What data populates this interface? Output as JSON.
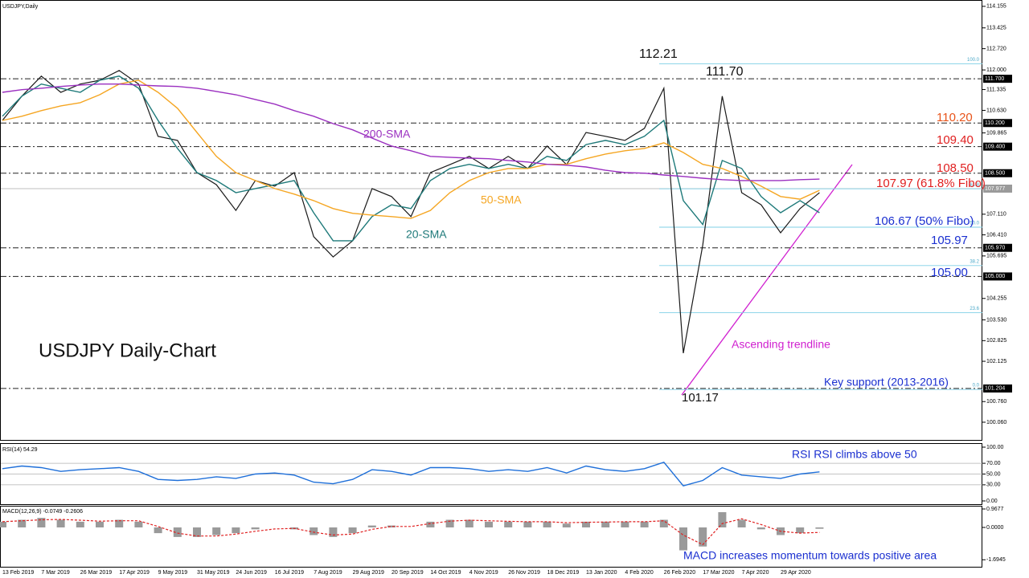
{
  "chart_data": [
    {
      "type": "line",
      "title": "USDJPY Daily-Chart",
      "symbol": "USDJPY,Daily",
      "categories": [
        "13 Feb 2019",
        null,
        "7 Mar 2019",
        null,
        "26 Mar 2019",
        null,
        "17 Apr 2019",
        null,
        "9 May 2019",
        null,
        "31 May 2019",
        null,
        "24 Jun 2019",
        null,
        "16 Jul 2019",
        null,
        "7 Aug 2019",
        null,
        "29 Aug 2019",
        null,
        "20 Sep 2019",
        null,
        "14 Oct 2019",
        null,
        "4 Nov 2019",
        null,
        "26 Nov 2019",
        null,
        "18 Dec 2019",
        null,
        "13 Jan 2020",
        null,
        "4 Feb 2020",
        null,
        "26 Feb 2020",
        null,
        "17 Mar 2020",
        null,
        "7 Apr 2020",
        null,
        "29 Apr 2020",
        null,
        null
      ],
      "series": [
        {
          "color": "#1a1a1a",
          "values": [
            110.29,
            111.11,
            111.79,
            111.24,
            111.52,
            111.65,
            111.98,
            111.52,
            109.75,
            109.61,
            108.52,
            108.11,
            107.24,
            108.25,
            108.06,
            108.52,
            106.35,
            105.66,
            106.21,
            107.98,
            107.71,
            107.03,
            108.52,
            108.79,
            109.07,
            108.66,
            109.07,
            108.66,
            109.42,
            108.79,
            109.88,
            109.75,
            109.61,
            110.02,
            111.38,
            102.4,
            106.07,
            111.11,
            107.84,
            107.43,
            106.48,
            107.3,
            107.84
          ]
        },
        {
          "name": "20-SMA",
          "color": "#1f7a7a",
          "values": [
            110.43,
            111.11,
            111.52,
            111.38,
            111.24,
            111.65,
            111.79,
            111.38,
            110.29,
            109.34,
            108.52,
            108.25,
            107.84,
            107.98,
            108.11,
            108.25,
            107.16,
            106.21,
            106.21,
            107.03,
            107.43,
            107.3,
            108.25,
            108.66,
            108.8,
            108.66,
            108.8,
            108.66,
            109.07,
            108.93,
            109.47,
            109.61,
            109.47,
            109.75,
            110.29,
            107.57,
            106.76,
            108.93,
            108.66,
            107.71,
            107.16,
            107.57,
            107.16
          ]
        },
        {
          "name": "50-SMA",
          "color": "#f5a623",
          "values": [
            110.29,
            110.43,
            110.62,
            110.78,
            110.89,
            111.16,
            111.52,
            111.65,
            111.24,
            110.7,
            109.88,
            109.07,
            108.52,
            108.25,
            107.98,
            107.79,
            107.57,
            107.3,
            107.14,
            107.08,
            107.03,
            106.97,
            107.24,
            107.84,
            108.25,
            108.52,
            108.66,
            108.66,
            108.8,
            108.8,
            108.99,
            109.15,
            109.26,
            109.34,
            109.53,
            109.2,
            108.8,
            108.66,
            108.39,
            108.06,
            107.71,
            107.62,
            107.92
          ]
        },
        {
          "name": "200-SMA",
          "color": "#9b30c0",
          "values": [
            111.24,
            111.33,
            111.38,
            111.44,
            111.49,
            111.52,
            111.52,
            111.49,
            111.46,
            111.44,
            111.38,
            111.27,
            111.16,
            111.0,
            110.84,
            110.62,
            110.43,
            110.18,
            109.97,
            109.69,
            109.42,
            109.26,
            109.07,
            109.04,
            109.01,
            108.99,
            108.93,
            108.88,
            108.8,
            108.77,
            108.71,
            108.6,
            108.52,
            108.5,
            108.44,
            108.39,
            108.33,
            108.28,
            108.25,
            108.25,
            108.25,
            108.28,
            108.3
          ]
        }
      ],
      "ylim": [
        99.46,
        114.37
      ],
      "yticks": [
        114.155,
        113.425,
        {
          "value": 112.72,
          "label": "112.720"
        },
        {
          "value": 112,
          "label": "112.000"
        },
        111.335,
        {
          "value": 110.63,
          "label": "110.630"
        },
        109.865,
        {
          "value": 107.11,
          "label": "107.110"
        },
        {
          "value": 106.41,
          "label": "106.410"
        },
        105.695,
        104.255,
        {
          "value": 103.53,
          "label": "103.530"
        },
        102.825,
        102.125,
        {
          "value": 100.76,
          "label": "100.760"
        },
        {
          "value": 100.06,
          "label": "100.060"
        }
      ],
      "levels": [
        {
          "value": 111.7,
          "label": "111.700"
        },
        {
          "value": 110.2,
          "label": "110.200"
        },
        {
          "value": 109.4,
          "label": "109.400"
        },
        {
          "value": 108.5,
          "label": "108.500"
        },
        {
          "value": 105.97,
          "label": "105.970"
        },
        {
          "value": 105,
          "label": "105.000"
        },
        {
          "value": 101.204,
          "label": "101.204"
        }
      ],
      "current_price": {
        "value": 107.977,
        "label": "107.977"
      },
      "fibonacci": [
        {
          "label": "100.0",
          "value": 112.21
        },
        {
          "label": "61.8",
          "value": 107.97
        },
        {
          "label": "50.0",
          "value": 106.67
        },
        {
          "label": "38.2",
          "value": 105.37
        },
        {
          "label": "23.6",
          "value": 103.77
        },
        {
          "label": "0.0",
          "value": 101.17
        }
      ],
      "annotations": [
        {
          "text": "112.21",
          "color": "#111111"
        },
        {
          "text": "111.70",
          "color": "#111111"
        },
        {
          "text": "110.20",
          "color": "#e8541a"
        },
        {
          "text": "109.40",
          "color": "#e02020"
        },
        {
          "text": "108.50",
          "color": "#e02020"
        },
        {
          "text": "107.97 (61.8% Fibo)",
          "color": "#e02020"
        },
        {
          "text": "106.67 (50% Fibo)",
          "color": "#1a2fd0"
        },
        {
          "text": "105.97",
          "color": "#1a2fd0"
        },
        {
          "text": "105.00",
          "color": "#1a2fd0"
        },
        {
          "text": "101.17",
          "color": "#111111"
        },
        {
          "text": "Key support (2013-2016)",
          "color": "#1a2fd0"
        },
        {
          "text": "Ascending trendline",
          "color": "#d020d0"
        }
      ]
    },
    {
      "type": "line",
      "title": "RSI(14) 54.29",
      "series": [
        {
          "color": "#1e6fd9",
          "values": [
            60,
            65,
            62,
            55,
            58,
            60,
            62,
            55,
            40,
            38,
            40,
            45,
            42,
            50,
            52,
            48,
            35,
            32,
            40,
            58,
            55,
            48,
            62,
            62,
            60,
            55,
            58,
            55,
            62,
            52,
            65,
            58,
            55,
            60,
            72,
            28,
            38,
            62,
            48,
            45,
            42,
            50,
            54
          ]
        }
      ],
      "ylim": [
        -7.46,
        105.97
      ],
      "yticks": [
        {
          "value": 100,
          "label": "100.00"
        },
        {
          "value": 70,
          "label": "70.00"
        },
        {
          "value": 50,
          "label": "50.00"
        },
        {
          "value": 30,
          "label": "30.00"
        },
        {
          "value": 0,
          "label": "0.00"
        }
      ],
      "annotation": "RSI RSI climbs above 50"
    },
    {
      "type": "bar",
      "title": "MACD(12,26,9) -0.0749 -0.2606",
      "series": [
        {
          "type": "bar",
          "color": "#9a9a9a",
          "values": [
            0.3,
            0.4,
            0.5,
            0.4,
            0.3,
            0.3,
            0.4,
            0.3,
            -0.3,
            -0.5,
            -0.5,
            -0.4,
            -0.3,
            -0.1,
            0,
            -0.1,
            -0.4,
            -0.5,
            -0.3,
            0.1,
            0.1,
            0,
            0.3,
            0.4,
            0.4,
            0.3,
            0.3,
            0.3,
            0.3,
            0.2,
            0.3,
            0.3,
            0.3,
            0.3,
            0.4,
            -1.2,
            -1.0,
            0.8,
            0.4,
            -0.1,
            -0.4,
            -0.3,
            -0.07
          ]
        },
        {
          "type": "line",
          "color": "#e02020",
          "values": [
            0.3,
            0.35,
            0.4,
            0.42,
            0.38,
            0.33,
            0.35,
            0.35,
            0.05,
            -0.3,
            -0.45,
            -0.45,
            -0.35,
            -0.2,
            -0.08,
            -0.05,
            -0.25,
            -0.4,
            -0.35,
            -0.1,
            0.05,
            0.05,
            0.2,
            0.33,
            0.38,
            0.35,
            0.32,
            0.3,
            0.3,
            0.25,
            0.27,
            0.28,
            0.3,
            0.3,
            0.35,
            -0.4,
            -0.9,
            0.2,
            0.45,
            0.15,
            -0.2,
            -0.3,
            -0.26
          ]
        }
      ],
      "ylim": [
        -2.314,
        1.136
      ],
      "yticks": [
        0.9677,
        {
          "value": 0,
          "label": "0.0000"
        },
        -1.6945
      ],
      "annotation": "MACD increases  momentum towards positive area"
    }
  ]
}
